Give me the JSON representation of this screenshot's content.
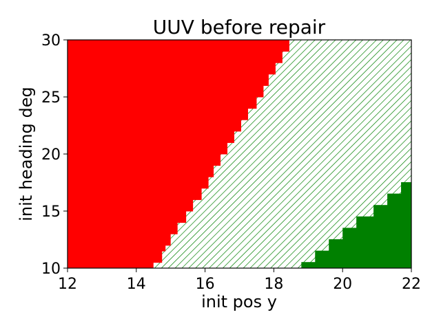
{
  "chart_data": {
    "type": "heatmap",
    "title": "UUV before repair",
    "xlabel": "init pos y",
    "ylabel": "init heading deg",
    "xlim": [
      12,
      22
    ],
    "ylim": [
      10,
      30
    ],
    "x_ticks": [
      12,
      14,
      16,
      18,
      20,
      22
    ],
    "y_ticks": [
      10,
      15,
      20,
      25,
      30
    ],
    "grid": false,
    "colors": {
      "unsafe_region": "#ff0000",
      "safe_region": "#008000",
      "hatch_region": "#008000",
      "hatch_background": "#ffffff"
    },
    "heading_bins": [
      10,
      10.5,
      11,
      11.5,
      12,
      12.5,
      13,
      13.5,
      14,
      14.5,
      15,
      15.5,
      16,
      16.5,
      17,
      17.5,
      18,
      18.5,
      19,
      19.5,
      20,
      20.5,
      21,
      21.5,
      22,
      22.5,
      23,
      23.5,
      24,
      24.5,
      25,
      25.5,
      26,
      26.5,
      27,
      27.5,
      28,
      28.5,
      29,
      29.5,
      30
    ],
    "red_boundary_pos_y": [
      14.5,
      14.75,
      14.75,
      14.85,
      15.0,
      15.0,
      15.2,
      15.2,
      15.45,
      15.45,
      15.65,
      15.65,
      15.9,
      15.9,
      16.1,
      16.1,
      16.25,
      16.25,
      16.45,
      16.45,
      16.65,
      16.65,
      16.85,
      16.85,
      17.05,
      17.05,
      17.25,
      17.25,
      17.5,
      17.5,
      17.7,
      17.7,
      17.85,
      17.85,
      18.05,
      18.05,
      18.25,
      18.25,
      18.45,
      18.45
    ],
    "green_boundary_pos_y": [
      18.8,
      19.2,
      19.2,
      19.6,
      19.6,
      20.0,
      20.0,
      20.4,
      20.4,
      20.9,
      20.9,
      21.3,
      21.3,
      21.7,
      21.7,
      22.0
    ]
  }
}
